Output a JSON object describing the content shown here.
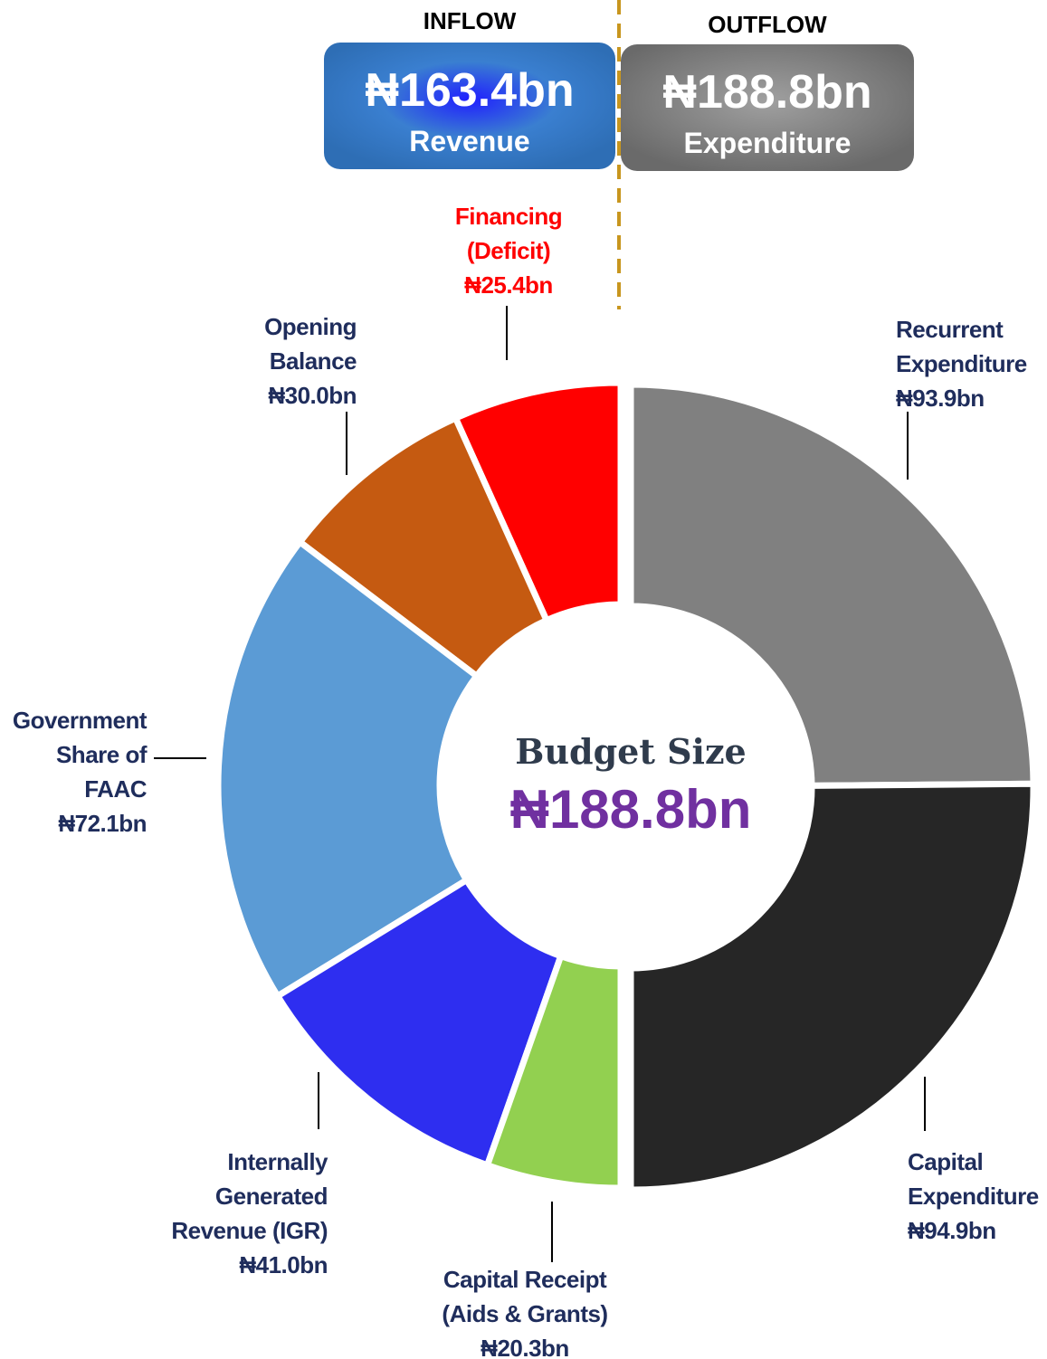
{
  "chart_data": {
    "type": "donut",
    "center_title": "Budget Size",
    "center_value": "₦188.8bn",
    "series": [
      {
        "name": "INFLOW",
        "total_label": "₦163.4bn",
        "caption": "Revenue",
        "categories": [
          "Financing\n(Deficit)",
          "Opening\nBalance",
          "Government\nShare of\nFAAC",
          "Internally\nGenerated\nRevenue (IGR)",
          "Capital Receipt\n(Aids & Grants)"
        ],
        "values": [
          25.4,
          30.0,
          72.1,
          41.0,
          20.3
        ],
        "value_labels": [
          "₦25.4bn",
          "₦30.0bn",
          "₦72.1bn",
          "₦41.0bn",
          "₦20.3bn"
        ],
        "colors": [
          "#ff0000",
          "#c55a11",
          "#5b9bd5",
          "#2e2ef0",
          "#92d050"
        ]
      },
      {
        "name": "OUTFLOW",
        "total_label": "₦188.8bn",
        "caption": "Expenditure",
        "categories": [
          "Recurrent\nExpenditure",
          "Capital\nExpenditure"
        ],
        "values": [
          93.9,
          94.9
        ],
        "value_labels": [
          "₦93.9bn",
          "₦94.9bn"
        ],
        "colors": [
          "#808080",
          "#262626"
        ]
      }
    ]
  }
}
